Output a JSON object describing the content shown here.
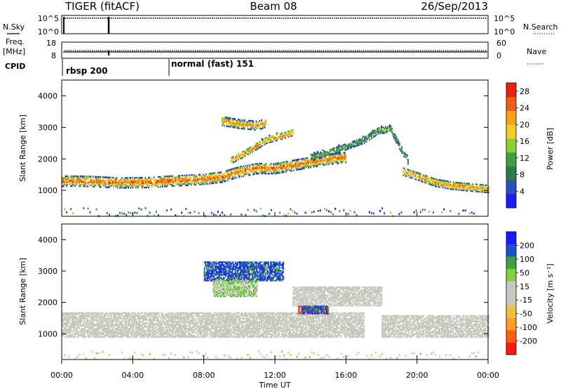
{
  "header": {
    "title": "TIGER (fitACF)",
    "beam": "Beam 08",
    "date": "26/Sep/2013"
  },
  "status_panels": {
    "nsky_label": "N.Sky",
    "nsearch_label": "N.Search",
    "nsky_ticks": [
      "10^5",
      "10^0"
    ],
    "freq_label_1": "Freq.",
    "freq_label_2": "[MHz]",
    "freq_ticks": [
      "18",
      "8"
    ],
    "nave_label": "Nave",
    "nave_ticks": [
      "60",
      "0"
    ],
    "cpid_label": "CPID",
    "cpid_segments": [
      {
        "label": "rbsp 200",
        "start_hour": 0
      },
      {
        "label": "normal (fast) 151",
        "start_hour": 6
      }
    ]
  },
  "x_axis": {
    "label": "Time UT",
    "ticks": [
      "00:00",
      "04:00",
      "08:00",
      "12:00",
      "16:00",
      "20:00",
      "00:00"
    ]
  },
  "colors": {
    "power_scale": [
      "#1a1aff",
      "#2e4fc4",
      "#2f7a4a",
      "#40a040",
      "#8bcf3a",
      "#f0d020",
      "#f8a018",
      "#f06010",
      "#e82010"
    ],
    "velocity_scale": [
      "#ff1a10",
      "#ff6010",
      "#ffa020",
      "#f0c040",
      "#c8c8c0",
      "#c8c8c0",
      "#80d040",
      "#40a040",
      "#2050d0",
      "#1a1aff"
    ]
  },
  "chart_data": [
    {
      "type": "heatmap",
      "name": "power",
      "xlabel": "Time UT",
      "ylabel": "Slant Range [km]",
      "xlim": [
        0,
        24
      ],
      "ylim": [
        180,
        4500
      ],
      "y_ticks": [
        "4000",
        "3000",
        "2000",
        "1000"
      ],
      "colorbar": {
        "label": "Power [dB]",
        "ticks": [
          "28",
          "24",
          "20",
          "16",
          "12",
          "8",
          "4"
        ],
        "range": [
          0,
          30
        ]
      },
      "bands": [
        {
          "t": [
            0,
            1,
            2,
            3,
            4,
            5,
            6,
            7,
            8,
            9,
            10,
            11,
            12,
            13,
            14,
            15,
            16
          ],
          "r": [
            1300,
            1300,
            1280,
            1250,
            1250,
            1260,
            1300,
            1330,
            1360,
            1430,
            1600,
            1700,
            1700,
            1800,
            1900,
            2000,
            2050
          ],
          "half_width": 130,
          "peak_db": 24
        },
        {
          "t": [
            9.5,
            10.5,
            11.5,
            12.5,
            13
          ],
          "r": [
            1950,
            2250,
            2600,
            2750,
            2850
          ],
          "half_width": 90,
          "peak_db": 22
        },
        {
          "t": [
            9,
            10,
            11,
            11.5
          ],
          "r": [
            3200,
            3100,
            3050,
            3150
          ],
          "half_width": 110,
          "peak_db": 22
        },
        {
          "t": [
            14,
            15,
            16,
            17,
            17.8,
            18.5,
            19,
            19.5
          ],
          "r": [
            2050,
            2200,
            2400,
            2600,
            2900,
            2950,
            2400,
            1900
          ],
          "half_width": 90,
          "peak_db": 12
        },
        {
          "t": [
            19.2,
            20,
            21,
            22,
            23,
            24
          ],
          "r": [
            1600,
            1450,
            1250,
            1150,
            1100,
            1050
          ],
          "half_width": 100,
          "peak_db": 22
        }
      ]
    },
    {
      "type": "heatmap",
      "name": "velocity",
      "xlabel": "Time UT",
      "ylabel": "Slant Range [km]",
      "xlim": [
        0,
        24
      ],
      "ylim": [
        180,
        4500
      ],
      "y_ticks": [
        "4000",
        "3000",
        "2000",
        "1000"
      ],
      "colorbar": {
        "label": "Velocity [m s⁻¹]",
        "ticks": [
          "200",
          "100",
          "50",
          "15",
          "-15",
          "-50",
          "-100",
          "-200"
        ],
        "range": [
          -250,
          250
        ]
      },
      "regions": [
        {
          "t0": 0,
          "t1": 17,
          "r0": 900,
          "r1": 1700,
          "v": 0
        },
        {
          "t0": 13,
          "t1": 18,
          "r0": 1900,
          "r1": 2500,
          "v": 0
        },
        {
          "t0": 18,
          "t1": 24,
          "r0": 900,
          "r1": 1600,
          "v": 0
        },
        {
          "t0": 8,
          "t1": 12.5,
          "r0": 2700,
          "r1": 3300,
          "v": 180
        },
        {
          "t0": 8.5,
          "t1": 11,
          "r0": 2200,
          "r1": 2700,
          "v": 60
        },
        {
          "t0": 13.3,
          "t1": 15,
          "r0": 1650,
          "r1": 1900,
          "v": -180
        },
        {
          "t0": 13.5,
          "t1": 15,
          "r0": 1650,
          "r1": 1900,
          "v": 180
        }
      ]
    }
  ]
}
